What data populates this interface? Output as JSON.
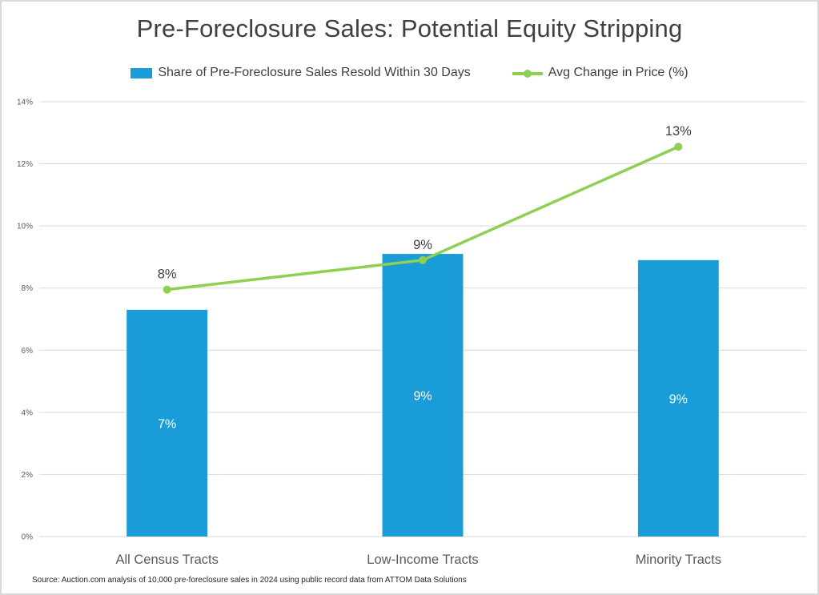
{
  "title": "Pre-Foreclosure Sales: Potential Equity Stripping",
  "legend": {
    "bar_label": "Share of Pre-Foreclosure Sales Resold Within 30 Days",
    "line_label": "Avg Change in Price (%)"
  },
  "source_note": "Source: Auction.com analysis of 10,000 pre-foreclosure sales in 2024 using public record data from ATTOM Data Solutions",
  "colors": {
    "bar": "#199CD8",
    "line": "#8ED051",
    "title_text": "#404040",
    "axis_text": "#595959",
    "gridline": "#D9D9D9",
    "bar_label_text": "#FFFFFF",
    "data_label_text": "#404040"
  },
  "chart_data": {
    "type": "bar",
    "subtype": "bar-line-combo",
    "title": "Pre-Foreclosure Sales: Potential Equity Stripping",
    "categories": [
      "All Census Tracts",
      "Low-Income Tracts",
      "Minority Tracts"
    ],
    "series": [
      {
        "name": "Share of Pre-Foreclosure Sales Resold Within 30 Days",
        "type": "bar",
        "color": "#199CD8",
        "values": [
          7.3,
          9.1,
          8.9
        ],
        "data_labels": [
          "7%",
          "9%",
          "9%"
        ],
        "data_label_position": "inside-center"
      },
      {
        "name": "Avg Change in Price (%)",
        "type": "line",
        "color": "#8ED051",
        "values": [
          7.95,
          8.9,
          12.55
        ],
        "data_labels": [
          "8%",
          "9%",
          "13%"
        ],
        "data_label_position": "above"
      }
    ],
    "xlabel": "",
    "ylabel": "",
    "ylim": [
      0,
      14
    ],
    "ytick_step": 2,
    "ytick_labels": [
      "0%",
      "2%",
      "4%",
      "6%",
      "8%",
      "10%",
      "12%",
      "14%"
    ],
    "grid": true,
    "legend_position": "top"
  }
}
